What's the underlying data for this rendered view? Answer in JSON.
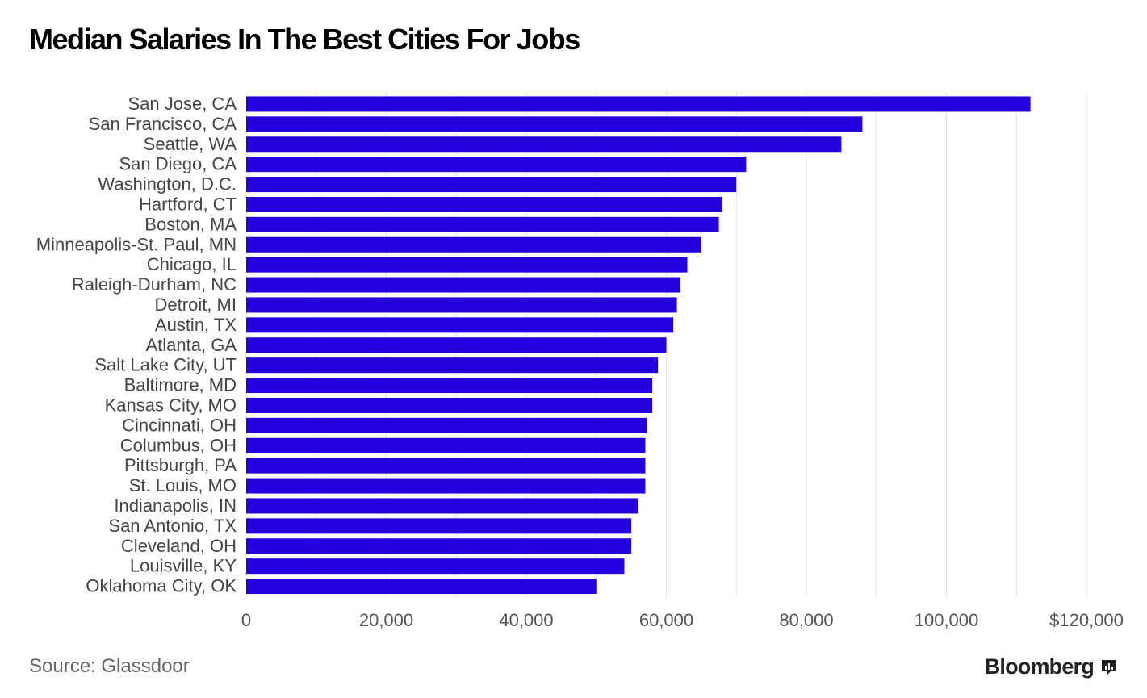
{
  "title": "Median Salaries In The Best Cities For Jobs",
  "source": "Source: Glassdoor",
  "brand": {
    "name": "Bloomberg",
    "icon": "chart-icon"
  },
  "colors": {
    "bar": "#2200DD",
    "grid": "#e4e4e4",
    "label": "#444444",
    "tick": "#555555"
  },
  "chart_data": {
    "type": "bar",
    "orientation": "horizontal",
    "categories": [
      "San Jose, CA",
      "San Francisco, CA",
      "Seattle, WA",
      "San Diego, CA",
      "Washington, D.C.",
      "Hartford, CT",
      "Boston, MA",
      "Minneapolis-St. Paul, MN",
      "Chicago, IL",
      "Raleigh-Durham, NC",
      "Detroit, MI",
      "Austin, TX",
      "Atlanta, GA",
      "Salt Lake City, UT",
      "Baltimore, MD",
      "Kansas City, MO",
      "Cincinnati, OH",
      "Columbus, OH",
      "Pittsburgh, PA",
      "St. Louis, MO",
      "Indianapolis, IN",
      "San Antonio, TX",
      "Cleveland, OH",
      "Louisville, KY",
      "Oklahoma City, OK"
    ],
    "values": [
      112000,
      88000,
      85000,
      71400,
      70000,
      68000,
      67500,
      65000,
      63000,
      62000,
      61500,
      61000,
      60000,
      58800,
      58000,
      58000,
      57200,
      57000,
      57000,
      57000,
      56000,
      55000,
      55000,
      54000,
      50000
    ],
    "xlim": [
      0,
      120000
    ],
    "xticks": [
      0,
      20000,
      40000,
      60000,
      80000,
      100000,
      120000
    ],
    "xtick_labels": [
      "0",
      "20,000",
      "40,000",
      "60,000",
      "80,000",
      "100,000",
      "$120,000"
    ],
    "grid": true,
    "legend": "none"
  }
}
